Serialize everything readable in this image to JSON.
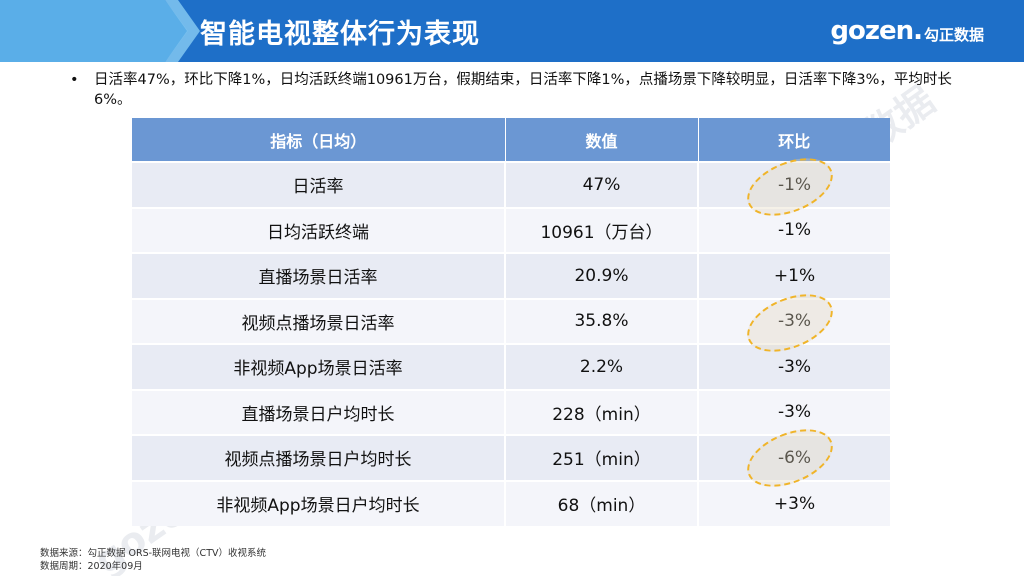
{
  "header": {
    "title": "智能电视整体行为表现",
    "logo_en": "gozen.",
    "logo_cn": "勾正数据"
  },
  "summary": {
    "bullet": "•",
    "text": "日活率47%，环比下降1%，日均活跃终端10961万台，假期结束，日活率下降1%，点播场景下降较明显，日活率下降3%，平均时长6%。"
  },
  "table": {
    "headers": [
      "指标（日均）",
      "数值",
      "环比"
    ],
    "rows": [
      {
        "metric": "日活率",
        "value": "47%",
        "change": "-1%"
      },
      {
        "metric": "日均活跃终端",
        "value": "10961（万台）",
        "change": "-1%"
      },
      {
        "metric": "直播场景日活率",
        "value": "20.9%",
        "change": "+1%"
      },
      {
        "metric": "视频点播场景日活率",
        "value": "35.8%",
        "change": "-3%"
      },
      {
        "metric": "非视频App场景日活率",
        "value": "2.2%",
        "change": "-3%"
      },
      {
        "metric": "直播场景日户均时长",
        "value": "228（min）",
        "change": "-3%"
      },
      {
        "metric": "视频点播场景日户均时长",
        "value": "251（min）",
        "change": "-6%"
      },
      {
        "metric": "非视频App场景日户均时长",
        "value": "68（min）",
        "change": "+3%"
      }
    ]
  },
  "watermark": "gozen.勾正数据",
  "footer": {
    "source": "数据来源：勾正数据 ORS-联网电视（CTV）收视系统",
    "period": "数据周期：2020年09月"
  },
  "colors": {
    "banner": "#1e6fc8",
    "banner_accent": "#5aaee8",
    "table_header": "#6b97d3",
    "highlight": "#f0b429"
  }
}
